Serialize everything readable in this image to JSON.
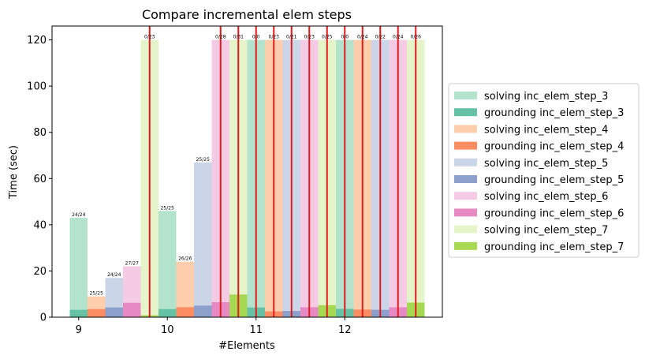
{
  "chart_data": {
    "type": "bar",
    "title": "Compare incremental elem steps",
    "xlabel": "#Elements",
    "ylabel": "Time (sec)",
    "ylim": [
      0,
      126
    ],
    "xlim": [
      8.7,
      13.1
    ],
    "yticks": [
      0,
      20,
      40,
      60,
      80,
      100,
      120
    ],
    "xticks": [
      9,
      10,
      11,
      12
    ],
    "bar_width": 0.2,
    "timeout_line_color": "#e31a1c",
    "legend_position": "outside-right",
    "series": [
      {
        "name": "solving inc_elem_step_3",
        "color": "#b3e2cd",
        "kind": "solving",
        "step": 3
      },
      {
        "name": "grounding inc_elem_step_3",
        "color": "#66c2a5",
        "kind": "grounding",
        "step": 3
      },
      {
        "name": "solving inc_elem_step_4",
        "color": "#fdcdac",
        "kind": "solving",
        "step": 4
      },
      {
        "name": "grounding inc_elem_step_4",
        "color": "#fc8d62",
        "kind": "grounding",
        "step": 4
      },
      {
        "name": "solving inc_elem_step_5",
        "color": "#cbd5e8",
        "kind": "solving",
        "step": 5
      },
      {
        "name": "grounding inc_elem_step_5",
        "color": "#8da0cb",
        "kind": "grounding",
        "step": 5
      },
      {
        "name": "solving inc_elem_step_6",
        "color": "#f4cae4",
        "kind": "solving",
        "step": 6
      },
      {
        "name": "grounding inc_elem_step_6",
        "color": "#e78ac3",
        "kind": "grounding",
        "step": 6
      },
      {
        "name": "solving inc_elem_step_7",
        "color": "#e6f5c9",
        "kind": "solving",
        "step": 7
      },
      {
        "name": "grounding inc_elem_step_7",
        "color": "#a6d854",
        "kind": "grounding",
        "step": 7
      }
    ],
    "bars": [
      {
        "x": 9.0,
        "step": 3,
        "solving": 43,
        "grounding": 3.2,
        "label": "24/24",
        "timeout": false
      },
      {
        "x": 9.2,
        "step": 4,
        "solving": 9,
        "grounding": 3.5,
        "label": "25/25",
        "timeout": false
      },
      {
        "x": 9.4,
        "step": 5,
        "solving": 17,
        "grounding": 4.2,
        "label": "24/24",
        "timeout": false
      },
      {
        "x": 9.6,
        "step": 6,
        "solving": 22,
        "grounding": 6.2,
        "label": "27/27",
        "timeout": false
      },
      {
        "x": 9.8,
        "step": 7,
        "solving": 120,
        "grounding": 0.8,
        "label": "0/23",
        "timeout": true
      },
      {
        "x": 10.0,
        "step": 3,
        "solving": 46,
        "grounding": 3.5,
        "label": "25/25",
        "timeout": false
      },
      {
        "x": 10.2,
        "step": 4,
        "solving": 24,
        "grounding": 4.3,
        "label": "26/26",
        "timeout": false
      },
      {
        "x": 10.4,
        "step": 5,
        "solving": 67,
        "grounding": 5.0,
        "label": "25/25",
        "timeout": false
      },
      {
        "x": 10.6,
        "step": 6,
        "solving": 120,
        "grounding": 6.5,
        "label": "0/28",
        "timeout": true
      },
      {
        "x": 10.8,
        "step": 7,
        "solving": 120,
        "grounding": 9.8,
        "label": "0/31",
        "timeout": true
      },
      {
        "x": 11.0,
        "step": 3,
        "solving": 120,
        "grounding": 4.2,
        "label": "0/0",
        "timeout": true
      },
      {
        "x": 11.2,
        "step": 4,
        "solving": 120,
        "grounding": 2.5,
        "label": "0/23",
        "timeout": true
      },
      {
        "x": 11.4,
        "step": 5,
        "solving": 120,
        "grounding": 2.7,
        "label": "0/21",
        "timeout": true
      },
      {
        "x": 11.6,
        "step": 6,
        "solving": 120,
        "grounding": 4.3,
        "label": "0/23",
        "timeout": true
      },
      {
        "x": 11.8,
        "step": 7,
        "solving": 120,
        "grounding": 5.2,
        "label": "0/25",
        "timeout": true
      },
      {
        "x": 12.0,
        "step": 3,
        "solving": 120,
        "grounding": 3.6,
        "label": "0/0",
        "timeout": true
      },
      {
        "x": 12.2,
        "step": 4,
        "solving": 120,
        "grounding": 3.3,
        "label": "0/24",
        "timeout": true
      },
      {
        "x": 12.4,
        "step": 5,
        "solving": 120,
        "grounding": 3.2,
        "label": "0/22",
        "timeout": true
      },
      {
        "x": 12.6,
        "step": 6,
        "solving": 120,
        "grounding": 4.3,
        "label": "0/24",
        "timeout": true
      },
      {
        "x": 12.8,
        "step": 7,
        "solving": 120,
        "grounding": 6.3,
        "label": "0/26",
        "timeout": true
      }
    ]
  }
}
